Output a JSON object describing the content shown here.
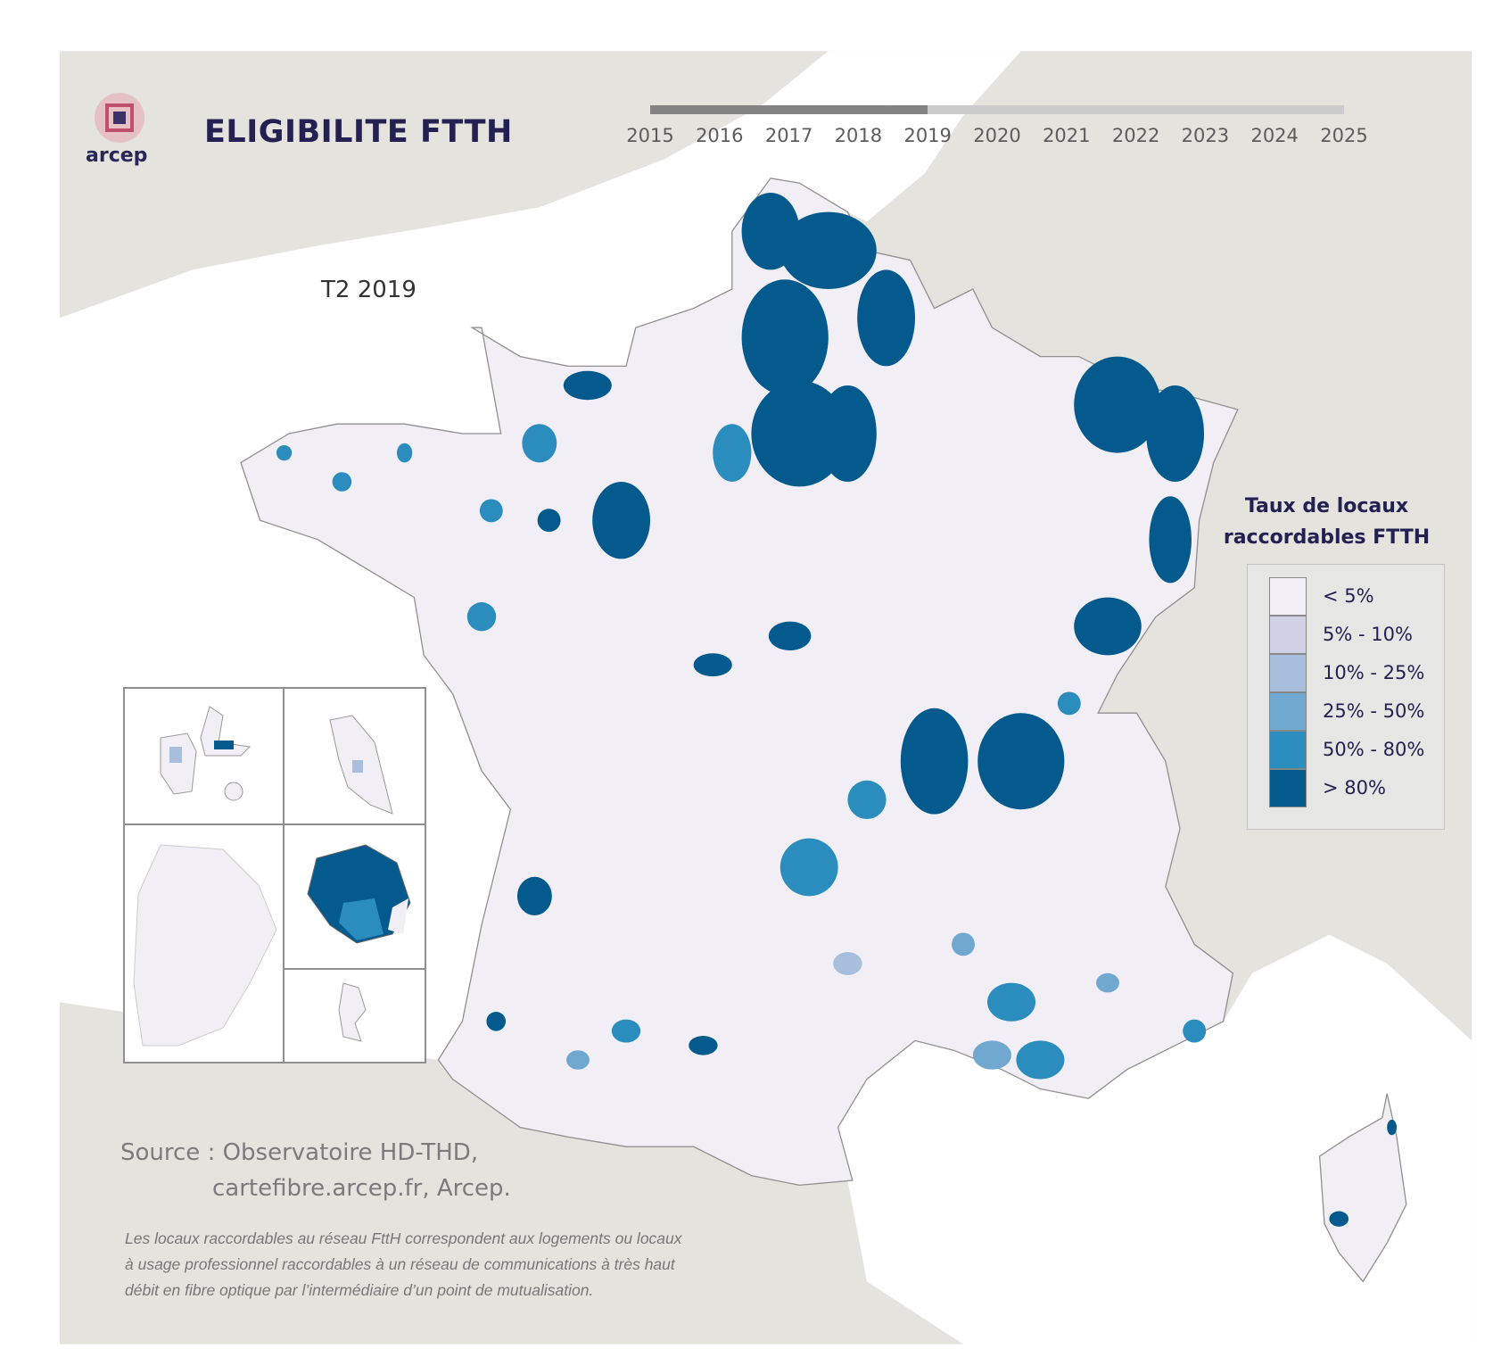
{
  "header": {
    "logo_text": "arcep",
    "title": "ELIGIBILITE FTTH",
    "period": "T2 2019"
  },
  "timeline": {
    "years": [
      "2015",
      "2016",
      "2017",
      "2018",
      "2019",
      "2020",
      "2021",
      "2022",
      "2023",
      "2024",
      "2025"
    ],
    "selected_year": "2019",
    "progress_fraction": 0.4
  },
  "legend": {
    "title_line1": "Taux de locaux",
    "title_line2": "raccordables FTTH",
    "items": [
      {
        "label": "< 5%",
        "color": "#f1eff5"
      },
      {
        "label": "5% - 10%",
        "color": "#d1d1e6"
      },
      {
        "label": "10% - 25%",
        "color": "#a7bedc"
      },
      {
        "label": "25% - 50%",
        "color": "#71a8cf"
      },
      {
        "label": "50% - 80%",
        "color": "#2b8cbe"
      },
      {
        "label": "> 80%",
        "color": "#045a8d"
      }
    ]
  },
  "colors": {
    "land_other": "#e4e3de",
    "sea": "#ffffff",
    "borders": "#8f8f8f",
    "title": "#242152"
  },
  "footer": {
    "source_line1": "Source : Observatoire HD-THD,",
    "source_line2": "cartefibre.arcep.fr, Arcep.",
    "note_line1": "Les locaux raccordables au réseau FttH correspondent aux logements ou locaux",
    "note_line2": "à usage professionnel raccordables à un réseau de communications à très haut",
    "note_line3": "débit en fibre optique par l’intermédiaire d’un point de mutualisation."
  },
  "insets": [
    "Guadeloupe",
    "Martinique",
    "Guyane",
    "La Réunion",
    "Mayotte"
  ]
}
